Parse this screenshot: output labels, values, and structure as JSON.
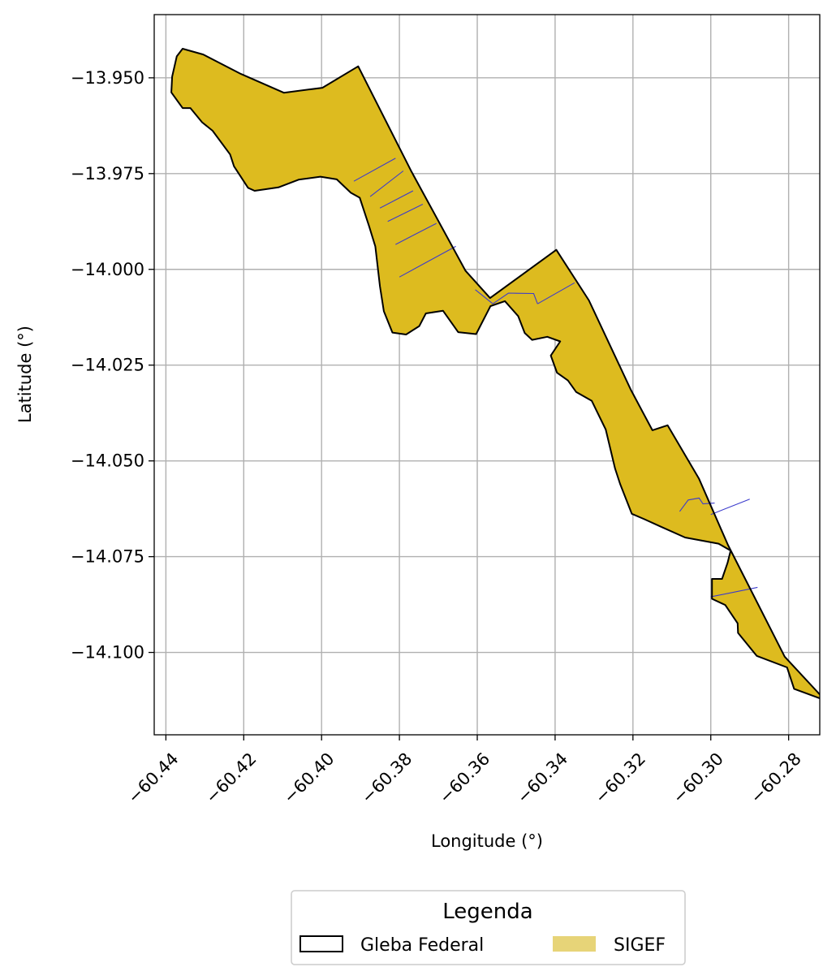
{
  "chart_data": {
    "type": "map",
    "xlabel": "Longitude (°)",
    "ylabel": "Latitude (°)",
    "xlim": [
      -60.443,
      -60.272
    ],
    "ylim": [
      -14.1215,
      -13.9335
    ],
    "xticks": [
      -60.44,
      -60.42,
      -60.4,
      -60.38,
      -60.36,
      -60.34,
      -60.32,
      -60.3,
      -60.28
    ],
    "xtick_labels": [
      "−60.44",
      "−60.42",
      "−60.40",
      "−60.38",
      "−60.36",
      "−60.34",
      "−60.32",
      "−60.30",
      "−60.28"
    ],
    "yticks": [
      -13.95,
      -13.975,
      -14.0,
      -14.025,
      -14.05,
      -14.075,
      -14.1
    ],
    "ytick_labels": [
      "−13.950",
      "−13.975",
      "−14.000",
      "−14.025",
      "−14.050",
      "−14.075",
      "−14.100"
    ],
    "grid": true,
    "colors": {
      "sigef_fill": "#ddbb1f",
      "gleba_edge": "#000000",
      "parcel_lines": "#3b3bcc",
      "grid": "#b0b0b0",
      "legend_patch_sigef": "#e7d478"
    },
    "gleba_outline": [
      [
        -60.4357,
        -13.9424
      ],
      [
        -60.4304,
        -13.9439
      ],
      [
        -60.4207,
        -13.949
      ],
      [
        -60.4097,
        -13.9539
      ],
      [
        -60.3998,
        -13.9526
      ],
      [
        -60.3906,
        -13.947
      ],
      [
        -60.3769,
        -13.9745
      ],
      [
        -60.363,
        -14.0004
      ],
      [
        -60.3567,
        -14.0075
      ],
      [
        -60.3397,
        -13.9949
      ],
      [
        -60.3313,
        -14.0081
      ],
      [
        -60.3205,
        -14.0315
      ],
      [
        -60.315,
        -14.042
      ],
      [
        -60.3111,
        -14.0407
      ],
      [
        -60.303,
        -14.0547
      ],
      [
        -60.2956,
        -14.0719
      ],
      [
        -60.281,
        -14.1011
      ],
      [
        -60.2706,
        -14.1125
      ],
      [
        -60.2786,
        -14.1095
      ],
      [
        -60.2804,
        -14.1039
      ],
      [
        -60.2882,
        -14.1009
      ],
      [
        -60.293,
        -14.0949
      ],
      [
        -60.2931,
        -14.0924
      ],
      [
        -60.2963,
        -14.0876
      ],
      [
        -60.2997,
        -14.086
      ],
      [
        -60.2997,
        -14.0808
      ],
      [
        -60.2971,
        -14.0808
      ],
      [
        -60.2957,
        -14.0766
      ],
      [
        -60.2949,
        -14.0734
      ],
      [
        -60.298,
        -14.0716
      ],
      [
        -60.3066,
        -14.07
      ],
      [
        -60.313,
        -14.0671
      ],
      [
        -60.3171,
        -14.0652
      ],
      [
        -60.3203,
        -14.0638
      ],
      [
        -60.3233,
        -14.056
      ],
      [
        -60.3246,
        -14.052
      ],
      [
        -60.327,
        -14.0418
      ],
      [
        -60.3306,
        -14.0343
      ],
      [
        -60.3346,
        -14.032
      ],
      [
        -60.3367,
        -14.029
      ],
      [
        -60.3395,
        -14.027
      ],
      [
        -60.3411,
        -14.0225
      ],
      [
        -60.3387,
        -14.0188
      ],
      [
        -60.342,
        -14.0176
      ],
      [
        -60.3459,
        -14.0184
      ],
      [
        -60.3478,
        -14.0166
      ],
      [
        -60.3495,
        -14.0122
      ],
      [
        -60.3529,
        -14.0083
      ],
      [
        -60.3566,
        -14.0096
      ],
      [
        -60.3603,
        -14.0169
      ],
      [
        -60.3649,
        -14.0164
      ],
      [
        -60.3688,
        -14.0108
      ],
      [
        -60.3732,
        -14.0115
      ],
      [
        -60.3749,
        -14.0148
      ],
      [
        -60.3783,
        -14.017
      ],
      [
        -60.3818,
        -14.0165
      ],
      [
        -60.384,
        -14.0109
      ],
      [
        -60.385,
        -14.0044
      ],
      [
        -60.3862,
        -13.994
      ],
      [
        -60.3878,
        -13.9887
      ],
      [
        -60.3902,
        -13.9813
      ],
      [
        -60.3925,
        -13.98
      ],
      [
        -60.3961,
        -13.9765
      ],
      [
        -60.4003,
        -13.9758
      ],
      [
        -60.4059,
        -13.9766
      ],
      [
        -60.4111,
        -13.9786
      ],
      [
        -60.4172,
        -13.9795
      ],
      [
        -60.4189,
        -13.9787
      ],
      [
        -60.4225,
        -13.9731
      ],
      [
        -60.4235,
        -13.97
      ],
      [
        -60.428,
        -13.9638
      ],
      [
        -60.4307,
        -13.9616
      ],
      [
        -60.4337,
        -13.9579
      ],
      [
        -60.4357,
        -13.9579
      ],
      [
        -60.4386,
        -13.9538
      ],
      [
        -60.4384,
        -13.9497
      ],
      [
        -60.4372,
        -13.9444
      ],
      [
        -60.4357,
        -13.9424
      ]
    ],
    "parcel_lines": [
      [
        [
          -60.3917,
          -13.977
        ],
        [
          -60.381,
          -13.971
        ]
      ],
      [
        [
          -60.3875,
          -13.981
        ],
        [
          -60.379,
          -13.9743
        ]
      ],
      [
        [
          -60.385,
          -13.984
        ],
        [
          -60.3765,
          -13.9795
        ]
      ],
      [
        [
          -60.383,
          -13.9875
        ],
        [
          -60.374,
          -13.983
        ]
      ],
      [
        [
          -60.381,
          -13.9935
        ],
        [
          -60.3705,
          -13.988
        ]
      ],
      [
        [
          -60.38,
          -14.002
        ],
        [
          -60.3655,
          -13.994
        ]
      ],
      [
        [
          -60.3605,
          -14.0053
        ],
        [
          -60.356,
          -14.009
        ]
      ],
      [
        [
          -60.356,
          -14.009
        ],
        [
          -60.352,
          -14.0062
        ],
        [
          -60.3455,
          -14.0063
        ],
        [
          -60.3445,
          -14.009
        ]
      ],
      [
        [
          -60.3445,
          -14.009
        ],
        [
          -60.335,
          -14.0035
        ]
      ],
      [
        [
          -60.308,
          -14.0632
        ],
        [
          -60.3058,
          -14.0602
        ],
        [
          -60.303,
          -14.0597
        ],
        [
          -60.302,
          -14.0612
        ],
        [
          -60.299,
          -14.061
        ]
      ],
      [
        [
          -60.3,
          -14.064
        ],
        [
          -60.29,
          -14.06
        ]
      ],
      [
        [
          -60.3,
          -14.0855
        ],
        [
          -60.288,
          -14.083
        ]
      ]
    ],
    "legend": {
      "title": "Legenda",
      "placement": "bottom-center, below axes",
      "entries": [
        {
          "label": "Gleba Federal",
          "style": "outline"
        },
        {
          "label": "SIGEF",
          "style": "fill"
        }
      ]
    }
  }
}
